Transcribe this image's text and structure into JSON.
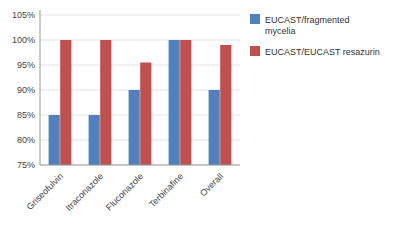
{
  "chart_data": {
    "type": "bar",
    "categories": [
      "Griseofulvin",
      "Itraconazole",
      "Fluconazole",
      "Terbinafine",
      "Overall"
    ],
    "series": [
      {
        "name": "EUCAST/fragmented\nmycelia",
        "color": "#4F81BD",
        "values": [
          85,
          85,
          90,
          100,
          90
        ]
      },
      {
        "name": "EUCAST/EUCAST resazurin",
        "color": "#C0504D",
        "values": [
          100,
          100,
          95.5,
          100,
          99
        ]
      }
    ],
    "ylim": [
      75,
      106
    ],
    "yticks": [
      {
        "value": 75,
        "label": "75%"
      },
      {
        "value": 80,
        "label": "80%"
      },
      {
        "value": 85,
        "label": "85%"
      },
      {
        "value": 90,
        "label": "90%"
      },
      {
        "value": 95,
        "label": "95%"
      },
      {
        "value": 100,
        "label": "100%"
      },
      {
        "value": 105,
        "label": "105%"
      }
    ],
    "grid": true,
    "legend": "right"
  }
}
